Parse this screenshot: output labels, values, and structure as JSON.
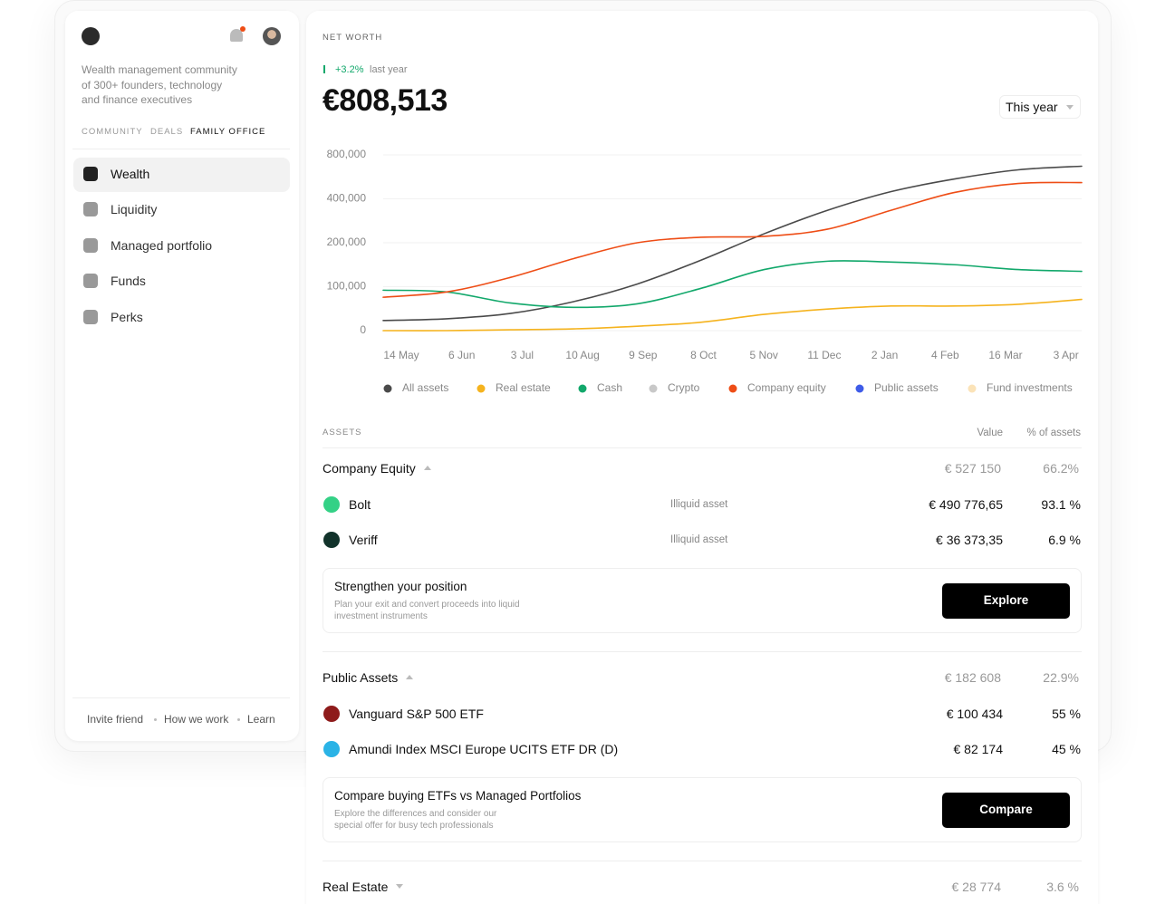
{
  "sidebar": {
    "tagline": [
      "Wealth management community",
      "of 300+ founders, technology",
      "and finance executives"
    ],
    "tabs": [
      "COMMUNITY",
      "DEALS",
      "FAMILY OFFICE"
    ],
    "nav": [
      "Wealth",
      "Liquidity",
      "Managed portfolio",
      "Funds",
      "Perks"
    ],
    "footer": [
      "Invite friend",
      "How we work",
      "Learn"
    ]
  },
  "header": {
    "label": "NET WORTH",
    "change": "+3.2%",
    "change_note": "last year",
    "total": "€808,513",
    "period": "This year"
  },
  "chart_data": {
    "type": "line",
    "categories": [
      "14 May",
      "6 Jun",
      "3 Jul",
      "10 Aug",
      "9 Sep",
      "8 Oct",
      "5 Nov",
      "11 Dec",
      "2 Jan",
      "4 Feb",
      "16 Mar",
      "3 Apr"
    ],
    "ylim": [
      0,
      800000
    ],
    "yticks": [
      0,
      {
        "value": 100000,
        "label": "100,000"
      },
      {
        "value": 200000,
        "label": "200,000"
      },
      {
        "value": 400000,
        "label": "400,000"
      },
      {
        "value": 800000,
        "label": "800,000"
      }
    ],
    "grid": true,
    "legend": "bottom",
    "series": [
      {
        "name": "All assets",
        "color": "#4a4a4a",
        "values": [
          23000,
          27000,
          39000,
          66000,
          106000,
          160000,
          241000,
          348000,
          466000,
          581000,
          664000,
          697000
        ]
      },
      {
        "name": "Real estate",
        "color": "#f5b31e",
        "values": [
          0,
          0,
          2000,
          4000,
          10000,
          19000,
          37000,
          49000,
          56000,
          56000,
          60000,
          71000
        ]
      },
      {
        "name": "Cash",
        "color": "#12a86b",
        "values": [
          92000,
          88000,
          63000,
          53000,
          61000,
          96000,
          139000,
          158000,
          156000,
          150000,
          139000,
          135000
        ]
      },
      {
        "name": "Crypto",
        "color": "#c8c8c8",
        "values": [
          null,
          null,
          null,
          null,
          null,
          null,
          null,
          null,
          null,
          null,
          null,
          null
        ]
      },
      {
        "name": "Company equity",
        "color": "#ee4d16",
        "values": [
          76000,
          88000,
          121000,
          164000,
          200000,
          225000,
          229000,
          262000,
          348000,
          458000,
          540000,
          548000
        ]
      },
      {
        "name": "Public assets",
        "color": "#3f5ce8",
        "values": [
          null,
          null,
          null,
          null,
          null,
          null,
          null,
          null,
          null,
          null,
          null,
          null
        ]
      },
      {
        "name": "Fund investments",
        "color": "#fbe3b8",
        "values": [
          null,
          null,
          null,
          null,
          null,
          null,
          null,
          null,
          null,
          null,
          null,
          null
        ]
      }
    ]
  },
  "assets": {
    "title": "ASSETS",
    "columns": [
      "Value",
      "% of assets"
    ],
    "groups": [
      {
        "name": "Company Equity",
        "value": "€ 527 150",
        "share": "66.2%",
        "items": [
          {
            "name": "Bolt",
            "tag": "Illiquid asset",
            "value": "€ 490 776,65",
            "share": "93.1 %",
            "icon": "#34d186"
          },
          {
            "name": "Veriff",
            "tag": "Illiquid asset",
            "value": "€ 36 373,35",
            "share": "6.9 %",
            "icon": "#12332b"
          }
        ],
        "promo": {
          "title": "Strengthen your position",
          "text": [
            "Plan your exit and convert proceeds into liquid",
            "investment instruments"
          ],
          "button": "Explore"
        }
      },
      {
        "name": "Public Assets",
        "value": "€ 182 608",
        "share": "22.9%",
        "items": [
          {
            "name": "Vanguard S&P 500 ETF",
            "value": "€ 100 434",
            "share": "55 %",
            "icon": "#8e1b1b"
          },
          {
            "name": "Amundi Index MSCI Europe UCITS ETF DR (D)",
            "value": "€ 82 174",
            "share": "45 %",
            "icon": "#2ab3e6"
          }
        ],
        "promo": {
          "title": "Compare buying ETFs vs Managed Portfolios",
          "text": [
            "Explore the differences and consider our",
            "special offer for busy tech professionals"
          ],
          "button": "Compare"
        }
      },
      {
        "name": "Real Estate",
        "value": "€ 28 774",
        "share": "3.6 %",
        "items": []
      }
    ]
  }
}
